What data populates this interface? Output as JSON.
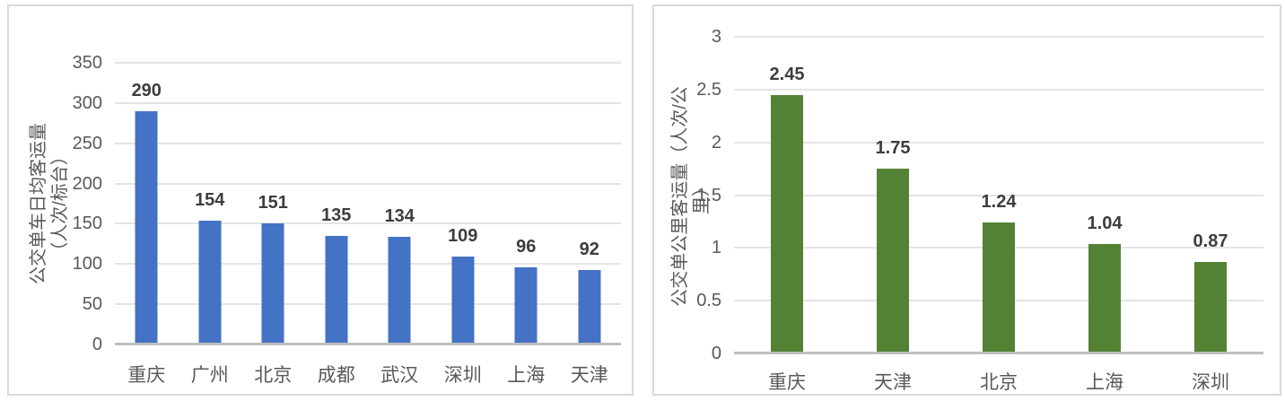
{
  "page": {
    "description": "Two side-by-side bar chart panels comparing bus passenger volumes across Chinese cities"
  },
  "colors": {
    "left_bar": "#4472C4",
    "right_bar": "#548235",
    "gridline": "#e4e4e4",
    "axis_line": "#bfbfbf",
    "panel_border": "#d9d9d9",
    "tick_text": "#595959",
    "value_text": "#3d3d3d"
  },
  "chart_data": [
    {
      "type": "bar",
      "title": "",
      "ylabel": "公交单车日均客运量（人次/标台）",
      "ylabel_lines": [
        "公交单车日均客运量",
        "（人次/标台）"
      ],
      "xlabel": "",
      "categories": [
        "重庆",
        "广州",
        "北京",
        "成都",
        "武汉",
        "深圳",
        "上海",
        "天津"
      ],
      "values": [
        290,
        154,
        151,
        135,
        134,
        109,
        96,
        92
      ],
      "value_labels": [
        "290",
        "154",
        "151",
        "135",
        "134",
        "109",
        "96",
        "92"
      ],
      "ylim": [
        0,
        350
      ],
      "yticks": [
        0,
        50,
        100,
        150,
        200,
        250,
        300,
        350
      ],
      "ytick_labels": [
        "0",
        "50",
        "100",
        "150",
        "200",
        "250",
        "300",
        "350"
      ],
      "bar_color": "#4472C4",
      "grid": true,
      "legend": "none"
    },
    {
      "type": "bar",
      "title": "",
      "ylabel": "公交单公里客运量（人次/公里）",
      "ylabel_lines": [
        "公交单公里客运量（人次/公",
        "里）"
      ],
      "xlabel": "",
      "categories": [
        "重庆",
        "天津",
        "北京",
        "上海",
        "深圳"
      ],
      "values": [
        2.45,
        1.75,
        1.24,
        1.04,
        0.87
      ],
      "value_labels": [
        "2.45",
        "1.75",
        "1.24",
        "1.04",
        "0.87"
      ],
      "ylim": [
        0,
        3
      ],
      "yticks": [
        0,
        0.5,
        1,
        1.5,
        2,
        2.5,
        3
      ],
      "ytick_labels": [
        "0",
        "0.5",
        "1",
        "1.5",
        "2",
        "2.5",
        "3"
      ],
      "bar_color": "#548235",
      "grid": true,
      "legend": "none"
    }
  ]
}
